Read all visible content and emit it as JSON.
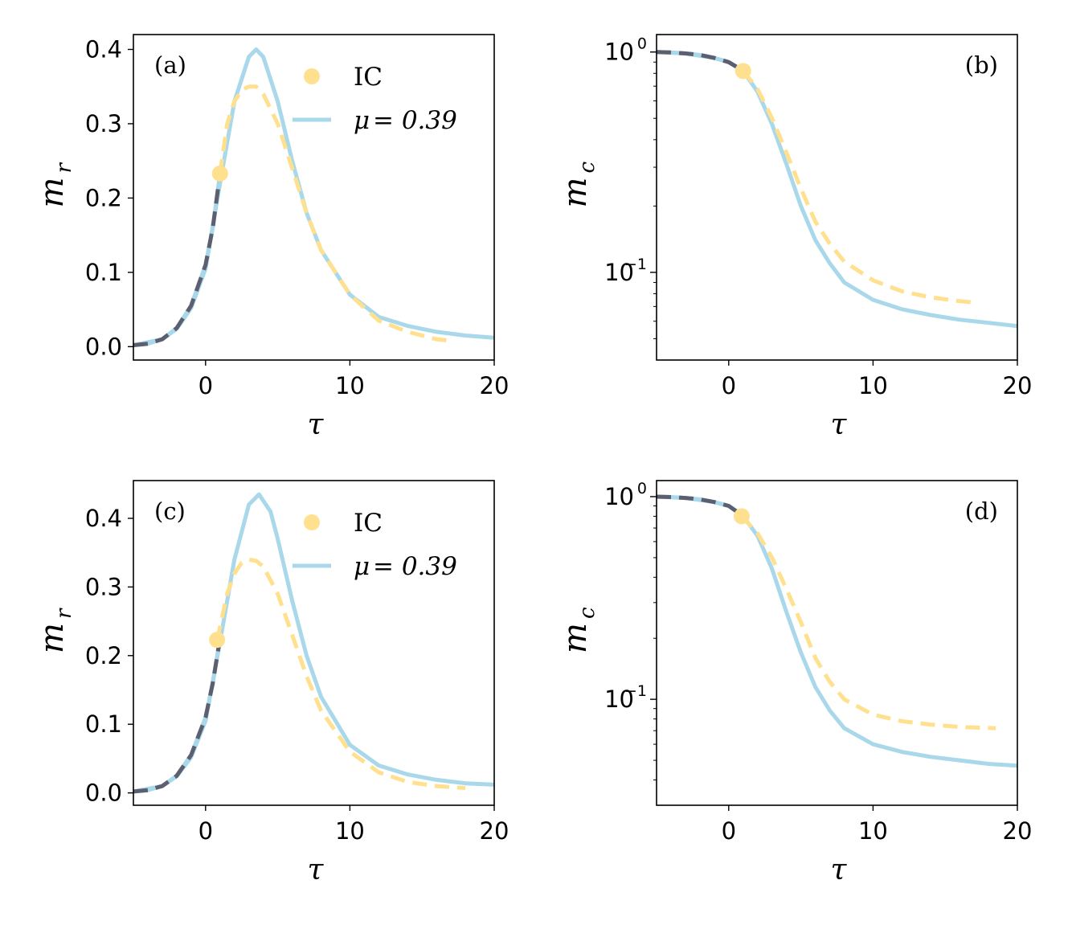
{
  "colors": {
    "solid": "#a8d8ea",
    "dashed": "#ffe08f",
    "dark": "#5c5f6f",
    "ic": "#ffe08f"
  },
  "chart_data": [
    {
      "type": "line",
      "panel": "(a)",
      "xlabel": "τ",
      "ylabel_main": "m",
      "ylabel_sub": "r",
      "yscale": "linear",
      "xlim": [
        -5,
        20
      ],
      "ylim": [
        -0.018,
        0.42
      ],
      "xticks": [
        0,
        10,
        20
      ],
      "xtick_labels": [
        "0",
        "10",
        "20"
      ],
      "yticks": [
        0.0,
        0.1,
        0.2,
        0.3,
        0.4
      ],
      "ytick_labels": [
        "0.0",
        "0.1",
        "0.2",
        "0.3",
        "0.4"
      ],
      "legend": {
        "placement": "top-center",
        "ic_label": "IC",
        "line_label_prefix": "μ",
        "line_label_value": "= 0.39"
      },
      "ic_point": {
        "x": 1.0,
        "y": 0.233
      },
      "series": [
        {
          "name": "data (dark dashed)",
          "x": [
            -5,
            -4,
            -3,
            -2,
            -1,
            0,
            0.5,
            1.0
          ],
          "y": [
            0.002,
            0.004,
            0.01,
            0.025,
            0.055,
            0.11,
            0.16,
            0.233
          ]
        },
        {
          "name": "μ = 0.39",
          "x": [
            -5,
            -3,
            -2,
            -1,
            0,
            1,
            2,
            3,
            3.5,
            4,
            5,
            6,
            7,
            8,
            10,
            12,
            14,
            16,
            18,
            20
          ],
          "y": [
            0.002,
            0.01,
            0.024,
            0.052,
            0.105,
            0.22,
            0.33,
            0.39,
            0.4,
            0.39,
            0.33,
            0.25,
            0.18,
            0.13,
            0.07,
            0.04,
            0.028,
            0.02,
            0.015,
            0.012
          ]
        },
        {
          "name": "IC dashed",
          "x": [
            1,
            1.5,
            2,
            2.5,
            3,
            3.5,
            4,
            5,
            6,
            7,
            8,
            10,
            12,
            14,
            16,
            17
          ],
          "y": [
            0.233,
            0.3,
            0.33,
            0.345,
            0.35,
            0.35,
            0.34,
            0.3,
            0.24,
            0.18,
            0.13,
            0.07,
            0.035,
            0.02,
            0.01,
            0.008
          ]
        }
      ]
    },
    {
      "type": "line",
      "panel": "(b)",
      "xlabel": "τ",
      "ylabel_main": "m",
      "ylabel_sub": "c",
      "yscale": "log",
      "xlim": [
        -5,
        20
      ],
      "ylim": [
        0.04,
        1.2
      ],
      "xticks": [
        0,
        10,
        20
      ],
      "xtick_labels": [
        "0",
        "10",
        "20"
      ],
      "yticks": [
        0.1,
        1
      ],
      "ytick_bases": [
        "10",
        "10"
      ],
      "ytick_exps": [
        "−1",
        "0"
      ],
      "ic_point": {
        "x": 1.0,
        "y": 0.82
      },
      "series": [
        {
          "name": "data (dark dashed)",
          "x": [
            -5,
            -4,
            -3,
            -2,
            -1,
            0,
            0.5,
            1.0
          ],
          "y": [
            1.0,
            0.995,
            0.985,
            0.97,
            0.94,
            0.9,
            0.86,
            0.82
          ]
        },
        {
          "name": "μ = 0.39",
          "x": [
            -5,
            -3,
            -1,
            0,
            1,
            2,
            3,
            4,
            5,
            6,
            7,
            8,
            10,
            12,
            14,
            16,
            18,
            20
          ],
          "y": [
            1.0,
            0.985,
            0.94,
            0.9,
            0.82,
            0.66,
            0.47,
            0.31,
            0.2,
            0.14,
            0.11,
            0.09,
            0.075,
            0.068,
            0.064,
            0.061,
            0.059,
            0.057
          ]
        },
        {
          "name": "IC dashed",
          "x": [
            1,
            2,
            3,
            4,
            5,
            6,
            7,
            8,
            10,
            12,
            14,
            16,
            17
          ],
          "y": [
            0.82,
            0.68,
            0.5,
            0.35,
            0.24,
            0.17,
            0.135,
            0.112,
            0.092,
            0.082,
            0.077,
            0.074,
            0.073
          ]
        }
      ]
    },
    {
      "type": "line",
      "panel": "(c)",
      "xlabel": "τ",
      "ylabel_main": "m",
      "ylabel_sub": "r",
      "yscale": "linear",
      "xlim": [
        -5,
        20
      ],
      "ylim": [
        -0.018,
        0.455
      ],
      "xticks": [
        0,
        10,
        20
      ],
      "xtick_labels": [
        "0",
        "10",
        "20"
      ],
      "yticks": [
        0.0,
        0.1,
        0.2,
        0.3,
        0.4
      ],
      "ytick_labels": [
        "0.0",
        "0.1",
        "0.2",
        "0.3",
        "0.4"
      ],
      "legend": {
        "placement": "top-center",
        "ic_label": "IC",
        "line_label_prefix": "μ",
        "line_label_value": "= 0.39"
      },
      "ic_point": {
        "x": 0.8,
        "y": 0.223
      },
      "series": [
        {
          "name": "data (dark dashed)",
          "x": [
            -5,
            -4,
            -3,
            -2,
            -1,
            0,
            0.5,
            1.0
          ],
          "y": [
            0.002,
            0.004,
            0.01,
            0.025,
            0.055,
            0.11,
            0.16,
            0.225
          ]
        },
        {
          "name": "μ = 0.39",
          "x": [
            -5,
            -3,
            -2,
            -1,
            0,
            1,
            2,
            3,
            3.7,
            4.5,
            5,
            6,
            7,
            8,
            10,
            12,
            14,
            16,
            18,
            20
          ],
          "y": [
            0.002,
            0.01,
            0.024,
            0.052,
            0.105,
            0.22,
            0.34,
            0.42,
            0.435,
            0.41,
            0.37,
            0.28,
            0.2,
            0.14,
            0.07,
            0.04,
            0.027,
            0.019,
            0.014,
            0.012
          ]
        },
        {
          "name": "IC dashed",
          "x": [
            0.8,
            1.5,
            2,
            2.5,
            3,
            3.5,
            4,
            5,
            6,
            7,
            8,
            10,
            12,
            14,
            16,
            18
          ],
          "y": [
            0.223,
            0.29,
            0.32,
            0.335,
            0.34,
            0.338,
            0.33,
            0.29,
            0.23,
            0.17,
            0.12,
            0.06,
            0.03,
            0.016,
            0.01,
            0.007
          ]
        }
      ]
    },
    {
      "type": "line",
      "panel": "(d)",
      "xlabel": "τ",
      "ylabel_main": "m",
      "ylabel_sub": "c",
      "yscale": "log",
      "xlim": [
        -5,
        20
      ],
      "ylim": [
        0.03,
        1.2
      ],
      "xticks": [
        0,
        10,
        20
      ],
      "xtick_labels": [
        "0",
        "10",
        "20"
      ],
      "yticks": [
        0.1,
        1
      ],
      "ytick_bases": [
        "10",
        "10"
      ],
      "ytick_exps": [
        "−1",
        "0"
      ],
      "ic_point": {
        "x": 0.9,
        "y": 0.8
      },
      "series": [
        {
          "name": "data (dark dashed)",
          "x": [
            -5,
            -4,
            -3,
            -2,
            -1,
            0,
            0.5,
            1.0
          ],
          "y": [
            1.0,
            0.995,
            0.985,
            0.97,
            0.94,
            0.9,
            0.85,
            0.8
          ]
        },
        {
          "name": "μ = 0.39",
          "x": [
            -5,
            -3,
            -1,
            0,
            1,
            2,
            3,
            4,
            5,
            6,
            7,
            8,
            10,
            12,
            14,
            16,
            18,
            20
          ],
          "y": [
            1.0,
            0.985,
            0.94,
            0.9,
            0.8,
            0.64,
            0.44,
            0.27,
            0.17,
            0.115,
            0.088,
            0.072,
            0.06,
            0.055,
            0.052,
            0.05,
            0.048,
            0.047
          ]
        },
        {
          "name": "IC dashed",
          "x": [
            0.9,
            2,
            3,
            4,
            5,
            6,
            7,
            8,
            10,
            12,
            14,
            16,
            18.5
          ],
          "y": [
            0.8,
            0.66,
            0.5,
            0.35,
            0.24,
            0.16,
            0.122,
            0.1,
            0.084,
            0.078,
            0.075,
            0.073,
            0.072
          ]
        }
      ]
    }
  ]
}
